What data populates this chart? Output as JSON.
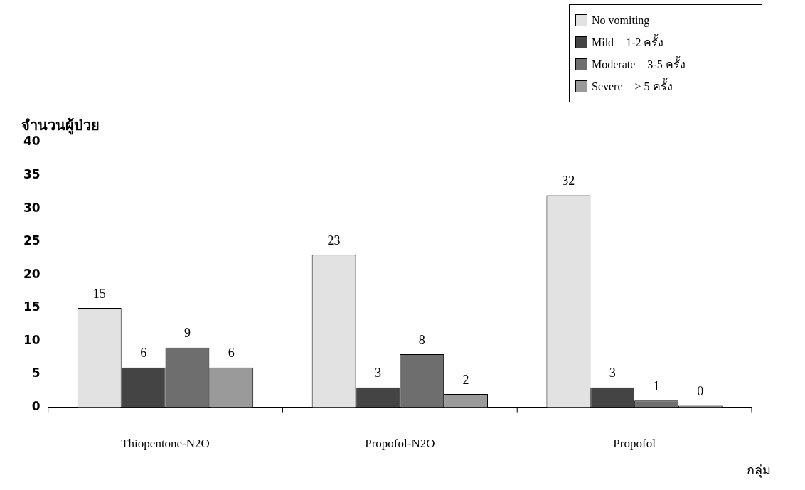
{
  "chart_data": {
    "type": "bar",
    "ylabel": "จำนวนผู้ป่วย",
    "xlabel": "กลุ่ม",
    "categories": [
      "Thiopentone-N2O",
      "Propofol-N2O",
      "Propofol"
    ],
    "series": [
      {
        "name": "No vomiting",
        "color": "#e2e2e2",
        "values": [
          15,
          23,
          32
        ]
      },
      {
        "name": "Mild = 1-2 ครั้ง",
        "color": "#444444",
        "values": [
          6,
          3,
          3
        ]
      },
      {
        "name": "Moderate = 3-5 ครั้ง",
        "color": "#6e6e6e",
        "values": [
          9,
          8,
          1
        ]
      },
      {
        "name": "Severe = > 5 ครั้ง",
        "color": "#9a9a9a",
        "values": [
          6,
          2,
          0
        ]
      }
    ],
    "ylim": [
      0,
      40
    ],
    "yticks": [
      0,
      5,
      10,
      15,
      20,
      25,
      30,
      35,
      40
    ],
    "grid": false,
    "legend": "top right",
    "data_labels": true
  }
}
